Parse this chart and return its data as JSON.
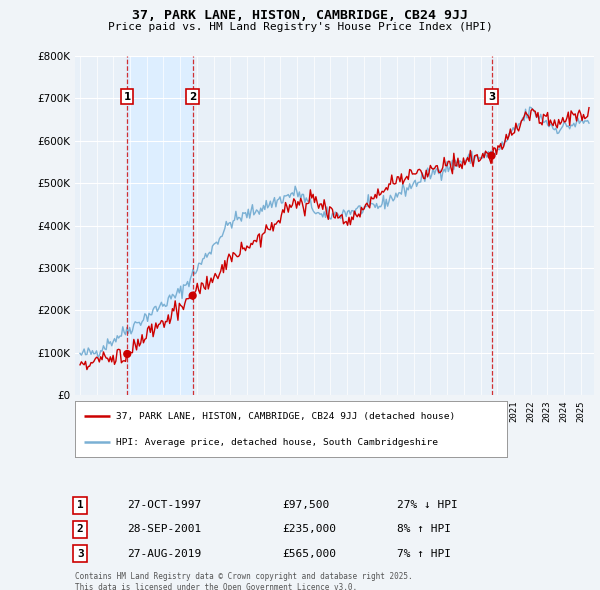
{
  "title": "37, PARK LANE, HISTON, CAMBRIDGE, CB24 9JJ",
  "subtitle": "Price paid vs. HM Land Registry's House Price Index (HPI)",
  "legend_line1": "37, PARK LANE, HISTON, CAMBRIDGE, CB24 9JJ (detached house)",
  "legend_line2": "HPI: Average price, detached house, South Cambridgeshire",
  "sale_points": [
    {
      "number": 1,
      "date": "27-OCT-1997",
      "price": 97500,
      "year": 1997.83,
      "pct": "27%",
      "dir": "↓"
    },
    {
      "number": 2,
      "date": "28-SEP-2001",
      "price": 235000,
      "year": 2001.75,
      "pct": "8%",
      "dir": "↑"
    },
    {
      "number": 3,
      "date": "27-AUG-2019",
      "price": 565000,
      "year": 2019.66,
      "pct": "7%",
      "dir": "↑"
    }
  ],
  "table_rows": [
    [
      "1",
      "27-OCT-1997",
      "£97,500",
      "27% ↓ HPI"
    ],
    [
      "2",
      "28-SEP-2001",
      "£235,000",
      "8% ↑ HPI"
    ],
    [
      "3",
      "27-AUG-2019",
      "£565,000",
      "7% ↑ HPI"
    ]
  ],
  "footer": "Contains HM Land Registry data © Crown copyright and database right 2025.\nThis data is licensed under the Open Government Licence v3.0.",
  "red_color": "#cc0000",
  "blue_color": "#7ab0d4",
  "shade_color": "#ddeeff",
  "background_color": "#f0f4f8",
  "plot_bg": "#e8f0f8",
  "ylim": [
    0,
    800000
  ],
  "ytop": 850000,
  "xmin": 1994.7,
  "xmax": 2025.8
}
